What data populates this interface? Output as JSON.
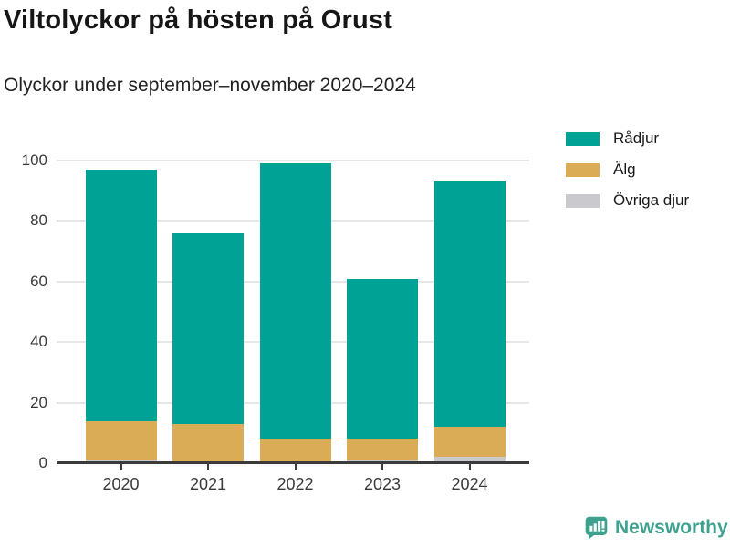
{
  "header": {
    "title": "Viltolyckor på hösten på Orust",
    "subtitle": "Olyckor under september–november 2020–2024"
  },
  "chart_data": {
    "type": "bar",
    "stacked": true,
    "title": "Viltolyckor på hösten på Orust",
    "subtitle": "Olyckor under september–november 2020–2024",
    "categories": [
      "2020",
      "2021",
      "2022",
      "2023",
      "2024"
    ],
    "series": [
      {
        "name": "Rådjur",
        "color": "#00a296",
        "values": [
          83,
          63,
          91,
          53,
          81
        ]
      },
      {
        "name": "Älg",
        "color": "#d9ac55",
        "values": [
          13,
          13,
          8,
          7,
          10
        ]
      },
      {
        "name": "Övriga djur",
        "color": "#c9c9ce",
        "values": [
          1,
          0,
          0,
          1,
          2
        ]
      }
    ],
    "totals": [
      97,
      76,
      99,
      61,
      93
    ],
    "xlabel": "",
    "ylabel": "",
    "ylim": [
      0,
      100
    ],
    "yticks": [
      0,
      20,
      40,
      60,
      80,
      100
    ],
    "grid": true,
    "legend_position": "top-right",
    "colors": {
      "grid": "#e7e7e7",
      "axis": "#3b3b3b",
      "tick_label": "#3a3a3a"
    }
  },
  "footer": {
    "brand": "Newsworthy",
    "brand_color": "#3da18e"
  }
}
